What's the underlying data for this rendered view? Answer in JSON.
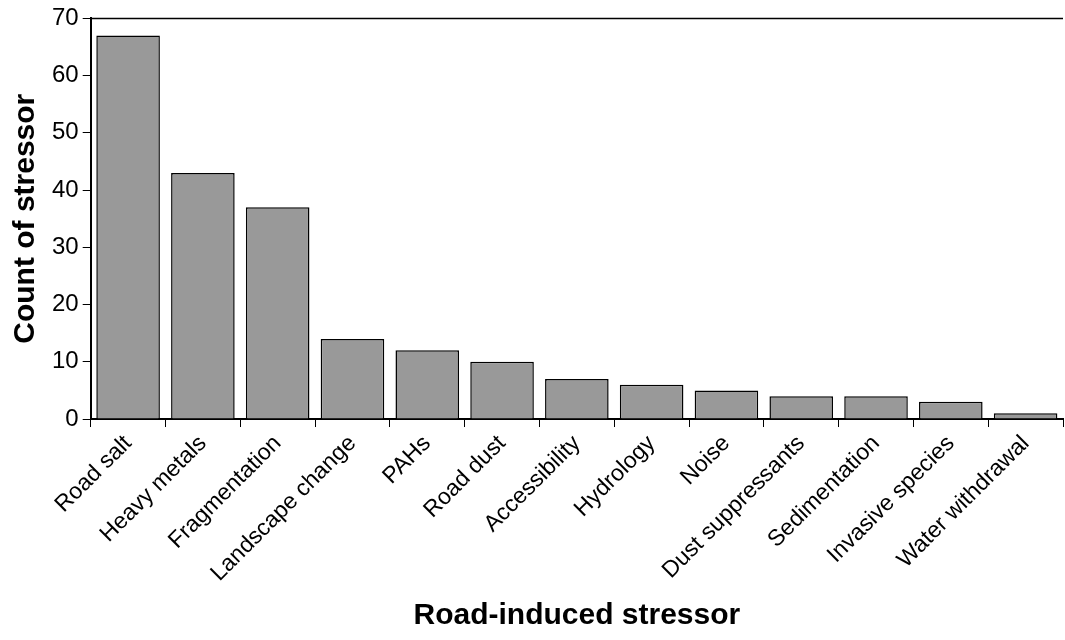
{
  "chart_data": {
    "type": "bar",
    "xlabel": "Road-induced stressor",
    "ylabel": "Count of stressor",
    "categories": [
      "Road salt",
      "Heavy metals",
      "Fragmentation",
      "Landscape change",
      "PAHs",
      "Road dust",
      "Accessibility",
      "Hydrology",
      "Noise",
      "Dust suppressants",
      "Sedimentation",
      "Invasive species",
      "Water withdrawal"
    ],
    "values": [
      67,
      43,
      37,
      14,
      12,
      10,
      7,
      6,
      5,
      4,
      4,
      3,
      1
    ],
    "color": "#999999",
    "ylim": [
      0,
      70
    ],
    "yticks": [
      0,
      10,
      20,
      30,
      40,
      50,
      60,
      70
    ],
    "grid": false,
    "legend": false
  }
}
